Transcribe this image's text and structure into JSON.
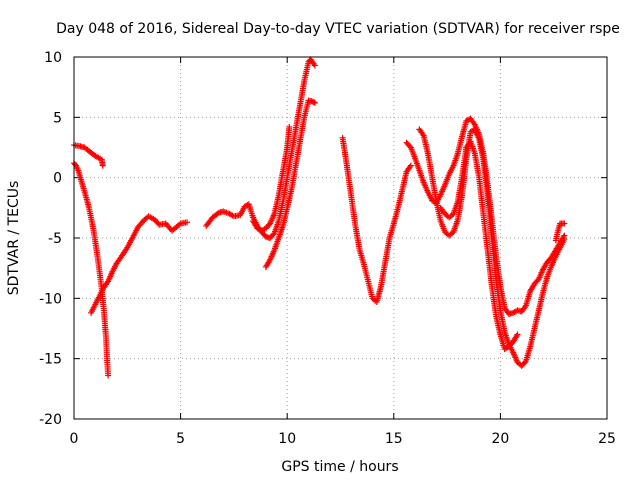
{
  "chart_data": {
    "type": "scatter",
    "title": "Day 048 of 2016, Sidereal Day-to-day VTEC variation (SDTVAR) for receiver rspe",
    "xlabel": "GPS time / hours",
    "ylabel": "SDTVAR / TECUs",
    "xlim": [
      0,
      25
    ],
    "ylim": [
      -20,
      10
    ],
    "xticks": [
      0,
      5,
      10,
      15,
      20,
      25
    ],
    "yticks": [
      -20,
      -15,
      -10,
      -5,
      0,
      5,
      10
    ],
    "grid": true,
    "marker": "+",
    "series": [
      {
        "color": "#ff0000",
        "points": [
          [
            0.0,
            2.7
          ],
          [
            0.3,
            2.6
          ],
          [
            0.5,
            2.5
          ],
          [
            0.7,
            2.2
          ],
          [
            1.0,
            1.8
          ],
          [
            1.3,
            1.5
          ],
          [
            1.35,
            1.0
          ]
        ]
      },
      {
        "color": "#ff0000",
        "points": [
          [
            0.0,
            1.2
          ],
          [
            0.1,
            1.0
          ],
          [
            0.2,
            0.6
          ],
          [
            0.3,
            0.0
          ],
          [
            0.4,
            -0.6
          ],
          [
            0.5,
            -1.2
          ],
          [
            0.6,
            -1.8
          ],
          [
            0.7,
            -2.5
          ],
          [
            0.8,
            -3.3
          ],
          [
            0.9,
            -4.2
          ],
          [
            1.0,
            -5.3
          ],
          [
            1.1,
            -6.5
          ],
          [
            1.2,
            -7.8
          ],
          [
            1.3,
            -9.2
          ],
          [
            1.4,
            -11.0
          ],
          [
            1.5,
            -13.2
          ],
          [
            1.55,
            -15.0
          ],
          [
            1.6,
            -16.4
          ]
        ]
      },
      {
        "color": "#ff0000",
        "points": [
          [
            0.8,
            -11.2
          ],
          [
            1.0,
            -10.5
          ],
          [
            1.2,
            -9.8
          ],
          [
            1.4,
            -9.1
          ],
          [
            1.6,
            -8.6
          ],
          [
            1.8,
            -7.8
          ],
          [
            2.0,
            -7.1
          ],
          [
            2.2,
            -6.6
          ],
          [
            2.5,
            -5.8
          ],
          [
            2.8,
            -4.8
          ],
          [
            3.0,
            -4.1
          ],
          [
            3.3,
            -3.5
          ],
          [
            3.5,
            -3.2
          ],
          [
            3.8,
            -3.5
          ],
          [
            4.0,
            -3.9
          ],
          [
            4.3,
            -3.8
          ],
          [
            4.6,
            -4.4
          ],
          [
            4.8,
            -4.1
          ],
          [
            5.0,
            -3.8
          ],
          [
            5.3,
            -3.7
          ]
        ]
      },
      {
        "color": "#ff0000",
        "points": [
          [
            6.2,
            -4.0
          ],
          [
            6.5,
            -3.3
          ],
          [
            6.8,
            -2.9
          ],
          [
            7.0,
            -2.8
          ],
          [
            7.3,
            -3.0
          ],
          [
            7.5,
            -3.2
          ],
          [
            7.8,
            -3.1
          ],
          [
            8.0,
            -2.4
          ],
          [
            8.2,
            -2.2
          ],
          [
            8.4,
            -3.3
          ],
          [
            8.6,
            -4.0
          ],
          [
            8.8,
            -4.5
          ],
          [
            9.0,
            -4.9
          ],
          [
            9.2,
            -5.0
          ],
          [
            9.4,
            -4.6
          ],
          [
            9.6,
            -3.6
          ],
          [
            9.8,
            -2.0
          ],
          [
            10.0,
            0.0
          ],
          [
            10.2,
            2.0
          ],
          [
            10.4,
            4.0
          ],
          [
            10.6,
            6.0
          ],
          [
            10.8,
            8.0
          ],
          [
            11.0,
            9.6
          ],
          [
            11.1,
            9.8
          ],
          [
            11.3,
            9.3
          ]
        ]
      },
      {
        "color": "#ff0000",
        "points": [
          [
            9.0,
            -7.4
          ],
          [
            9.2,
            -6.8
          ],
          [
            9.4,
            -6.0
          ],
          [
            9.6,
            -5.0
          ],
          [
            9.8,
            -4.0
          ],
          [
            10.0,
            -2.5
          ],
          [
            10.2,
            -1.0
          ],
          [
            10.4,
            1.0
          ],
          [
            10.6,
            3.0
          ],
          [
            10.8,
            5.0
          ],
          [
            11.0,
            6.4
          ],
          [
            11.2,
            6.3
          ],
          [
            11.3,
            6.2
          ]
        ]
      },
      {
        "color": "#ff0000",
        "points": [
          [
            8.4,
            -3.6
          ],
          [
            8.6,
            -4.2
          ],
          [
            8.8,
            -4.4
          ],
          [
            9.0,
            -4.2
          ],
          [
            9.2,
            -3.8
          ],
          [
            9.4,
            -3.0
          ],
          [
            9.6,
            -1.5
          ],
          [
            9.8,
            0.5
          ],
          [
            10.0,
            2.5
          ],
          [
            10.1,
            4.2
          ]
        ]
      },
      {
        "color": "#ff0000",
        "points": [
          [
            12.6,
            3.3
          ],
          [
            12.8,
            1.0
          ],
          [
            13.0,
            -1.5
          ],
          [
            13.2,
            -4.0
          ],
          [
            13.4,
            -6.0
          ],
          [
            13.6,
            -7.2
          ],
          [
            13.8,
            -8.6
          ],
          [
            14.0,
            -10.0
          ],
          [
            14.2,
            -10.3
          ],
          [
            14.4,
            -9.0
          ],
          [
            14.6,
            -7.0
          ],
          [
            14.8,
            -5.0
          ],
          [
            15.0,
            -3.8
          ],
          [
            15.2,
            -2.5
          ],
          [
            15.4,
            -1.0
          ],
          [
            15.6,
            0.5
          ],
          [
            15.8,
            1.0
          ]
        ]
      },
      {
        "color": "#ff0000",
        "points": [
          [
            15.6,
            2.9
          ],
          [
            15.8,
            2.5
          ],
          [
            16.0,
            1.6
          ],
          [
            16.2,
            0.6
          ],
          [
            16.4,
            -0.4
          ],
          [
            16.6,
            -1.2
          ],
          [
            16.8,
            -1.9
          ],
          [
            17.0,
            -2.1
          ],
          [
            17.2,
            -1.4
          ],
          [
            17.4,
            -0.6
          ],
          [
            17.6,
            0.3
          ],
          [
            17.8,
            1.0
          ],
          [
            18.0,
            2.0
          ],
          [
            18.2,
            3.4
          ],
          [
            18.4,
            4.7
          ],
          [
            18.6,
            4.9
          ],
          [
            18.8,
            4.4
          ],
          [
            19.0,
            3.6
          ],
          [
            19.2,
            2.0
          ],
          [
            19.4,
            -0.5
          ],
          [
            19.6,
            -3.5
          ],
          [
            19.8,
            -6.5
          ],
          [
            20.0,
            -9.0
          ],
          [
            20.2,
            -10.8
          ],
          [
            20.4,
            -11.3
          ],
          [
            20.6,
            -11.2
          ],
          [
            20.8,
            -11.0
          ],
          [
            21.0,
            -11.1
          ],
          [
            21.2,
            -10.6
          ],
          [
            21.4,
            -9.4
          ],
          [
            21.6,
            -8.8
          ],
          [
            21.8,
            -8.4
          ],
          [
            22.0,
            -7.6
          ],
          [
            22.2,
            -7.0
          ],
          [
            22.4,
            -6.6
          ],
          [
            22.6,
            -6.0
          ],
          [
            22.8,
            -5.4
          ],
          [
            23.0,
            -4.8
          ]
        ]
      },
      {
        "color": "#ff0000",
        "points": [
          [
            16.2,
            4.0
          ],
          [
            16.4,
            3.5
          ],
          [
            16.6,
            2.0
          ],
          [
            16.8,
            0.0
          ],
          [
            17.0,
            -2.0
          ],
          [
            17.2,
            -3.6
          ],
          [
            17.4,
            -4.5
          ],
          [
            17.6,
            -4.8
          ],
          [
            17.8,
            -4.5
          ],
          [
            18.0,
            -3.5
          ],
          [
            18.2,
            -1.5
          ],
          [
            18.4,
            1.5
          ],
          [
            18.6,
            3.8
          ],
          [
            18.8,
            4.0
          ],
          [
            19.0,
            3.2
          ],
          [
            19.2,
            1.5
          ],
          [
            19.4,
            -1.5
          ],
          [
            19.6,
            -5.0
          ],
          [
            19.8,
            -8.5
          ],
          [
            20.0,
            -11.0
          ],
          [
            20.2,
            -12.8
          ],
          [
            20.4,
            -13.8
          ],
          [
            20.6,
            -14.5
          ],
          [
            20.8,
            -15.3
          ],
          [
            21.0,
            -15.6
          ],
          [
            21.2,
            -15.2
          ],
          [
            21.4,
            -14.0
          ],
          [
            21.6,
            -12.5
          ],
          [
            21.8,
            -11.0
          ],
          [
            22.0,
            -9.5
          ],
          [
            22.2,
            -8.2
          ],
          [
            22.4,
            -7.3
          ],
          [
            22.6,
            -6.5
          ],
          [
            22.8,
            -5.8
          ],
          [
            23.0,
            -5.1
          ]
        ]
      },
      {
        "color": "#ff0000",
        "points": [
          [
            17.2,
            -2.5
          ],
          [
            17.4,
            -3.0
          ],
          [
            17.6,
            -3.3
          ],
          [
            17.8,
            -3.0
          ],
          [
            18.0,
            -2.0
          ],
          [
            18.2,
            0.0
          ],
          [
            18.4,
            2.5
          ],
          [
            18.6,
            3.0
          ],
          [
            18.8,
            2.0
          ],
          [
            19.0,
            0.0
          ],
          [
            19.2,
            -3.0
          ],
          [
            19.4,
            -6.0
          ],
          [
            19.6,
            -9.0
          ],
          [
            19.8,
            -11.5
          ],
          [
            20.0,
            -13.0
          ],
          [
            20.2,
            -14.2
          ],
          [
            20.4,
            -14.0
          ],
          [
            20.6,
            -13.6
          ],
          [
            20.8,
            -13.0
          ]
        ]
      },
      {
        "color": "#ff0000",
        "points": [
          [
            22.6,
            -5.2
          ],
          [
            22.7,
            -4.4
          ],
          [
            22.8,
            -3.8
          ],
          [
            23.0,
            -3.8
          ]
        ]
      }
    ]
  }
}
